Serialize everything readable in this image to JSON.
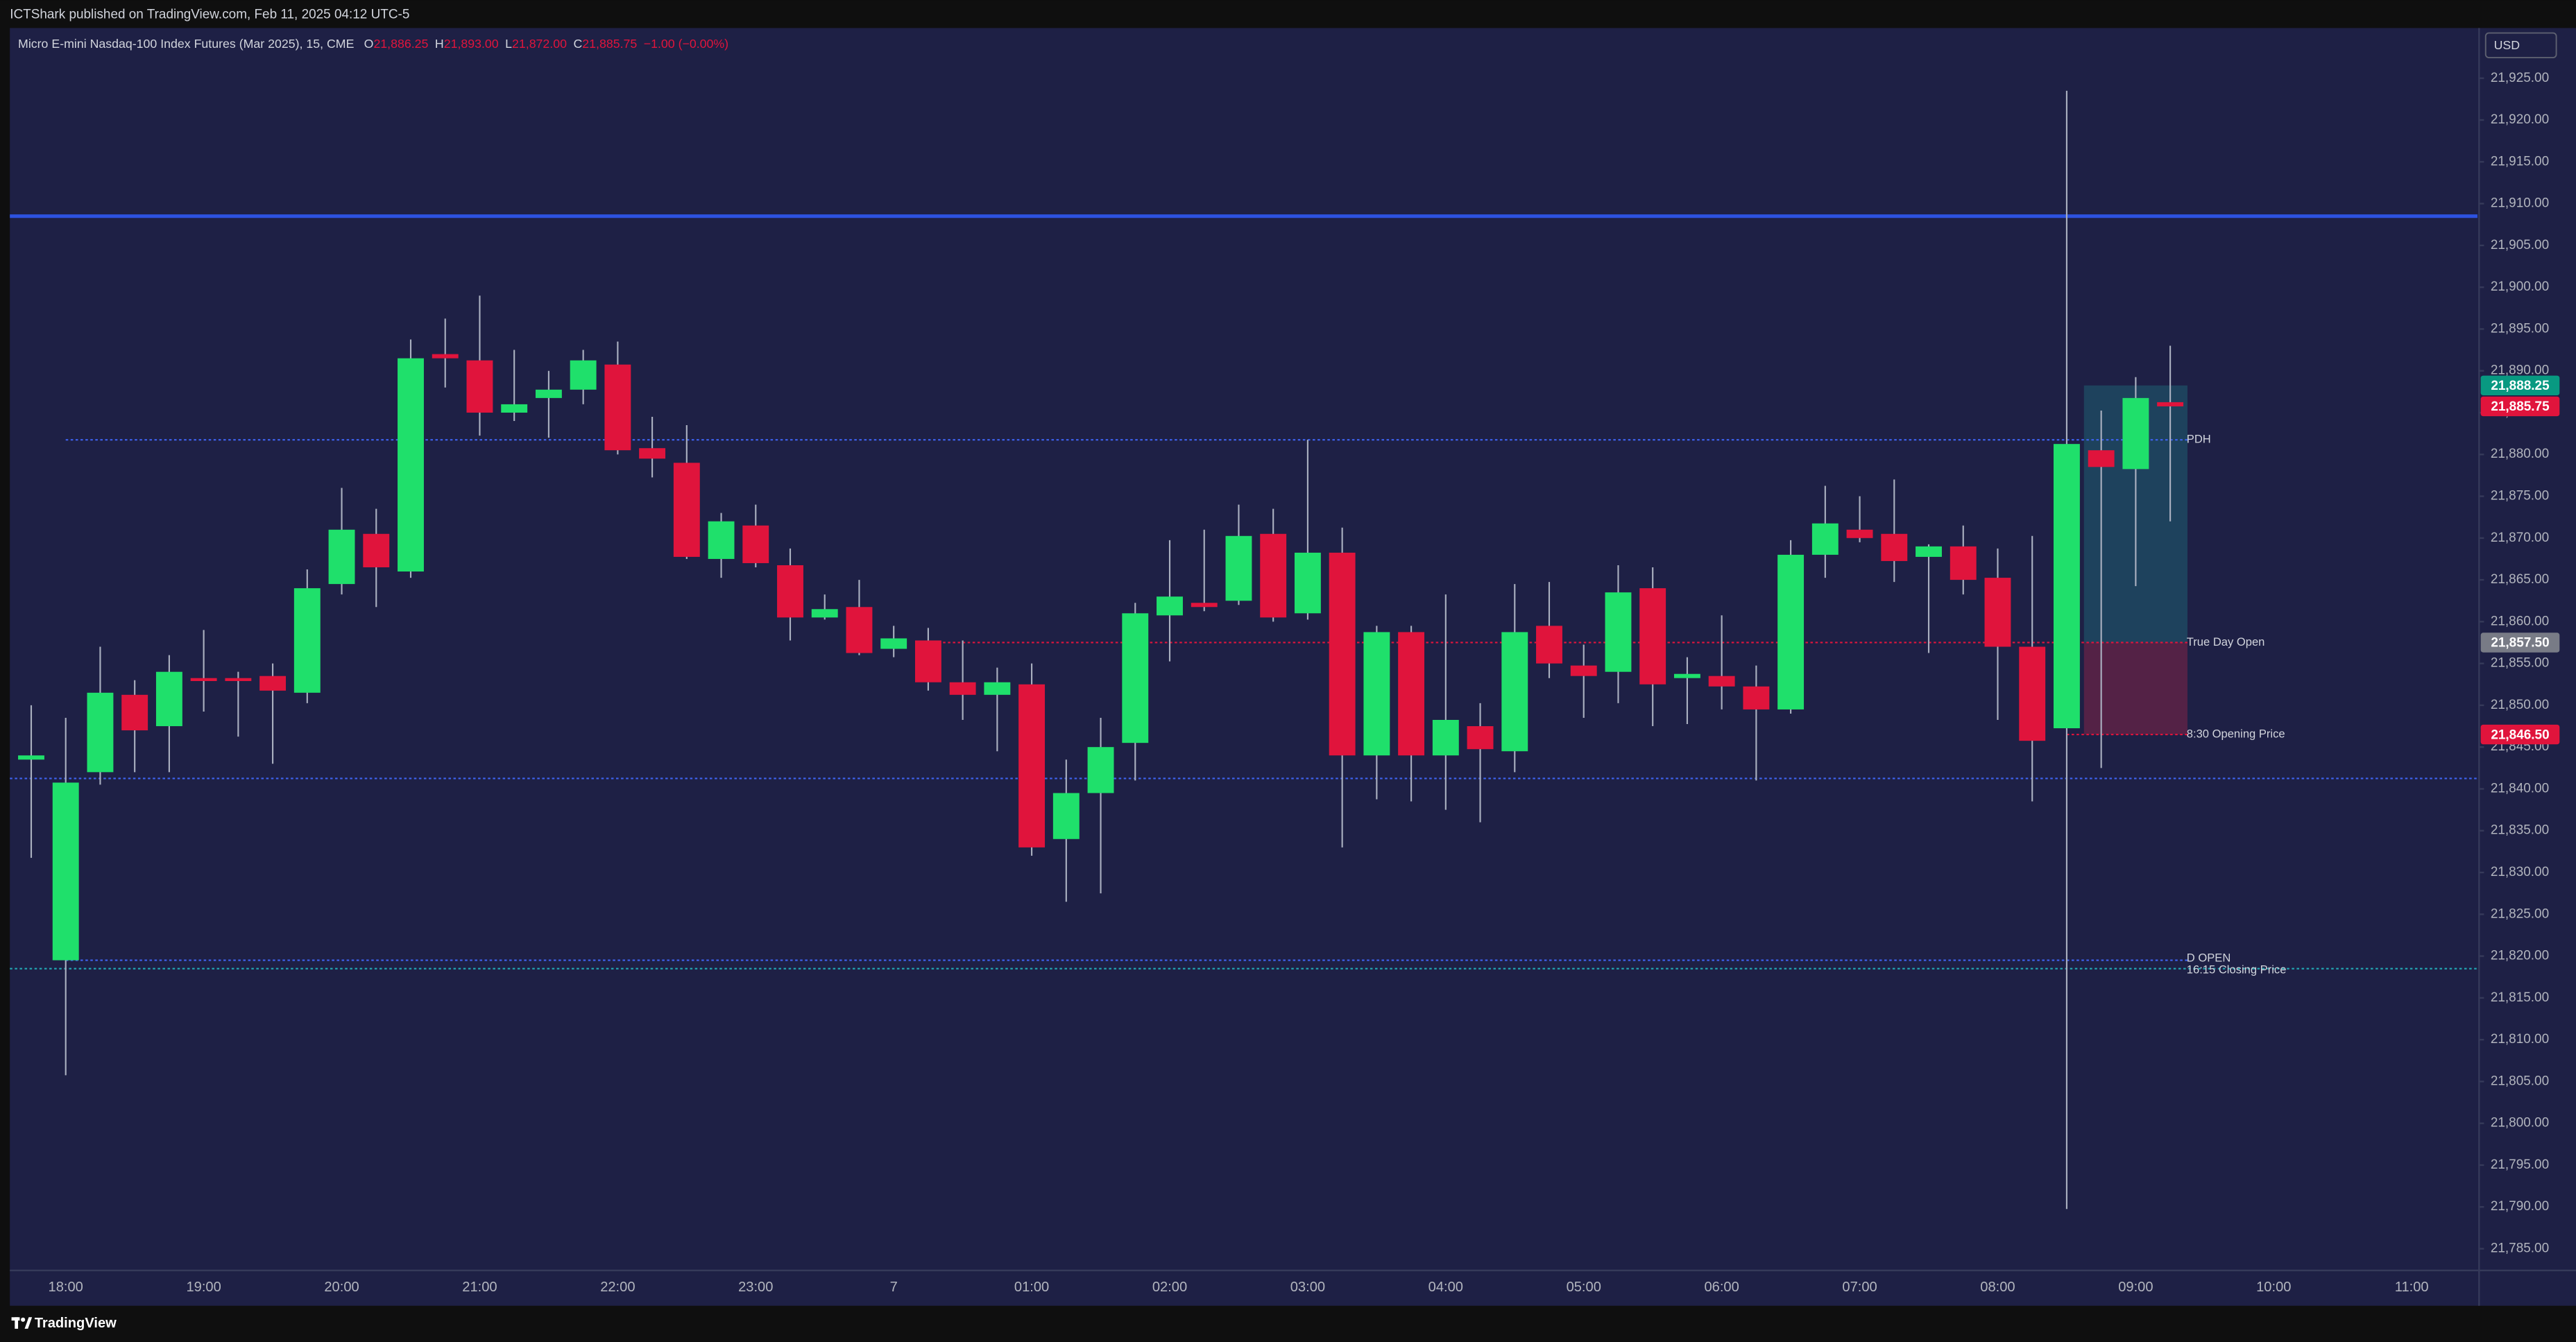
{
  "header": {
    "publisher": "ICTShark published on TradingView.com, Feb 11, 2025 04:12 UTC-5",
    "currency": "USD",
    "brand": "TradingView"
  },
  "chart_data": {
    "type": "candlestick",
    "legend": {
      "symbol": "Micro E-mini Nasdaq-100 Index Futures (Mar 2025), 15, CME",
      "items": [
        {
          "key": "O",
          "value": "21,886.25"
        },
        {
          "key": "H",
          "value": "21,893.00"
        },
        {
          "key": "L",
          "value": "21,872.00"
        },
        {
          "key": "C",
          "value": "21,885.75"
        }
      ],
      "change": "−1.00 (−0.00%)"
    },
    "categories": [
      null,
      "18:00",
      null,
      null,
      null,
      "19:00",
      null,
      null,
      null,
      "20:00",
      null,
      null,
      null,
      "21:00",
      null,
      null,
      null,
      "22:00",
      null,
      null,
      null,
      "23:00",
      null,
      null,
      null,
      "7",
      null,
      null,
      null,
      "01:00",
      null,
      null,
      null,
      "02:00",
      null,
      null,
      null,
      "03:00",
      null,
      null,
      null,
      "04:00",
      null,
      null,
      null,
      "05:00",
      null,
      null,
      null,
      "06:00",
      null,
      null,
      null,
      "07:00",
      null,
      null,
      null,
      "08:00",
      null,
      null,
      null,
      "09:00",
      null,
      null,
      null,
      "10:00",
      null,
      null,
      null,
      "11:00",
      null
    ],
    "open": [
      21843.5,
      21819.5,
      21842,
      21851.25,
      21847.5,
      21853.25,
      21853.25,
      21853.5,
      21851.5,
      21864.5,
      21870.5,
      21866,
      21892,
      21891.25,
      21885,
      21886.75,
      21887.75,
      21890.75,
      21880.75,
      21879,
      21867.5,
      21871.5,
      21866.75,
      21860.5,
      21861.75,
      21856.75,
      21857.75,
      21852.75,
      21851.25,
      21852.5,
      21834,
      21839.5,
      21845.5,
      21860.75,
      21862.25,
      21862.5,
      21870.5,
      21861,
      21868.25,
      21844,
      21858.75,
      21844,
      21847.5,
      21844.5,
      21859.5,
      21854.75,
      21854,
      21864,
      21853.25,
      21853.5,
      21852.25,
      21849.5,
      21868,
      21871,
      21870.5,
      21867.75,
      21869,
      21865.25,
      21857,
      21847.25,
      21880.5,
      21878.25,
      21886.25,
      null,
      null,
      null,
      null,
      null,
      null,
      null,
      null
    ],
    "high": [
      21850,
      21848.5,
      21857,
      21853,
      21856,
      21859,
      21854,
      21855,
      21866.25,
      21876,
      21873.5,
      21893.75,
      21896.25,
      21899,
      21892.5,
      21890,
      21892.5,
      21893.5,
      21884.5,
      21883.5,
      21873,
      21874,
      21868.75,
      21863.25,
      21865,
      21859.5,
      21859.25,
      21857.75,
      21854.5,
      21855,
      21843.5,
      21848.5,
      21862.25,
      21869.75,
      21871,
      21874,
      21873.5,
      21881.75,
      21871.25,
      21859.5,
      21859.5,
      21863.25,
      21850.25,
      21864.5,
      21864.75,
      21857.25,
      21866.75,
      21866.5,
      21855.75,
      21860.75,
      21854.75,
      21869.75,
      21876.25,
      21875,
      21877,
      21869.25,
      21871.5,
      21868.75,
      21870.25,
      21923.5,
      21885.25,
      21889.25,
      21893,
      null,
      null,
      null,
      null,
      null,
      null,
      null,
      null
    ],
    "low": [
      21831.75,
      21805.75,
      21840.5,
      21842,
      21842,
      21849.25,
      21846.25,
      21843,
      21850.25,
      21863.25,
      21861.75,
      21865.25,
      21888,
      21882.25,
      21884,
      21882,
      21886,
      21880,
      21877.25,
      21867.5,
      21865.25,
      21866.5,
      21857.75,
      21860.25,
      21856,
      21855.75,
      21851.75,
      21848.25,
      21844.5,
      21832,
      21826.5,
      21827.5,
      21841,
      21855.25,
      21861.25,
      21862,
      21860,
      21860.25,
      21833,
      21838.75,
      21838.5,
      21837.5,
      21836,
      21842,
      21853.25,
      21848.5,
      21850.25,
      21847.5,
      21847.75,
      21849.5,
      21841,
      21849,
      21865.25,
      21869.5,
      21864.75,
      21856.25,
      21863.25,
      21848.25,
      21838.5,
      21789.75,
      21842.5,
      21864.25,
      21872,
      null,
      null,
      null,
      null,
      null,
      null,
      null,
      null
    ],
    "close": [
      21844,
      21840.75,
      21851.5,
      21847,
      21854,
      21853,
      21853,
      21851.75,
      21864,
      21871,
      21866.5,
      21891.5,
      21891.5,
      21885,
      21886,
      21887.75,
      21891.25,
      21880.5,
      21879.5,
      21867.75,
      21872,
      21867,
      21860.5,
      21861.5,
      21856.25,
      21858,
      21852.75,
      21851.25,
      21852.75,
      21833,
      21839.5,
      21845,
      21861,
      21863,
      21861.75,
      21870.25,
      21860.5,
      21868.25,
      21844,
      21858.75,
      21844,
      21848.25,
      21844.75,
      21858.75,
      21855,
      21853.5,
      21863.5,
      21852.5,
      21853.75,
      21852.25,
      21849.5,
      21868,
      21871.75,
      21870,
      21867.25,
      21869,
      21865,
      21857,
      21845.75,
      21881.25,
      21878.5,
      21886.75,
      21885.75,
      null,
      null,
      null,
      null,
      null,
      null,
      null,
      null
    ],
    "up_color": "#1fe06b",
    "down_color": "#e0143c",
    "ylim": [
      21782.5,
      21931
    ],
    "yticks": [
      {
        "value": 21785,
        "label": "21,785.00"
      },
      {
        "value": 21790,
        "label": "21,790.00"
      },
      {
        "value": 21795,
        "label": "21,795.00"
      },
      {
        "value": 21800,
        "label": "21,800.00"
      },
      {
        "value": 21805,
        "label": "21,805.00"
      },
      {
        "value": 21810,
        "label": "21,810.00"
      },
      {
        "value": 21815,
        "label": "21,815.00"
      },
      {
        "value": 21820,
        "label": "21,820.00"
      },
      {
        "value": 21825,
        "label": "21,825.00"
      },
      {
        "value": 21830,
        "label": "21,830.00"
      },
      {
        "value": 21835,
        "label": "21,835.00"
      },
      {
        "value": 21840,
        "label": "21,840.00"
      },
      {
        "value": 21845,
        "label": "21,845.00"
      },
      {
        "value": 21850,
        "label": "21,850.00"
      },
      {
        "value": 21855,
        "label": "21,855.00"
      },
      {
        "value": 21860,
        "label": "21,860.00"
      },
      {
        "value": 21865,
        "label": "21,865.00"
      },
      {
        "value": 21870,
        "label": "21,870.00"
      },
      {
        "value": 21875,
        "label": "21,875.00"
      },
      {
        "value": 21880,
        "label": "21,880.00"
      },
      {
        "value": 21885,
        "label": "21,885.00"
      },
      {
        "value": 21890,
        "label": "21,890.00"
      },
      {
        "value": 21895,
        "label": "21,895.00"
      },
      {
        "value": 21900,
        "label": "21,900.00"
      },
      {
        "value": 21905,
        "label": "21,905.00"
      },
      {
        "value": 21910,
        "label": "21,910.00"
      },
      {
        "value": 21915,
        "label": "21,915.00"
      },
      {
        "value": 21920,
        "label": "21,920.00"
      },
      {
        "value": 21925,
        "label": "21,925.00"
      }
    ],
    "grid": false,
    "levels": [
      {
        "value": 21908.5,
        "color": "#2d52e0",
        "style": "solid"
      },
      {
        "value": 21881.75,
        "color": "#3f63f0",
        "style": "dotted",
        "label": "PDH"
      },
      {
        "value": 21857.5,
        "color": "#e0143c",
        "style": "dotted",
        "label": "True Day Open"
      },
      {
        "value": 21846.5,
        "color": "#e0143c",
        "style": "dotted",
        "label": "8:30 Opening Price"
      },
      {
        "value": 21841.25,
        "color": "#3f63f0",
        "style": "dotted"
      },
      {
        "value": 21819.5,
        "color": "#3f63f0",
        "style": "dotted",
        "label": "D OPEN"
      },
      {
        "value": 21818.5,
        "color": "#22a9b5",
        "style": "dotted",
        "label": "16:15 Closing Price"
      }
    ],
    "position": {
      "target": 21888.25,
      "entry": 21857.5,
      "stop": 21846.5
    },
    "price_tags": [
      {
        "value": 21888.25,
        "label": "21,888.25",
        "color": "#089981"
      },
      {
        "value": 21885.75,
        "label": "21,885.75",
        "color": "#e0143c"
      },
      {
        "value": 21857.5,
        "label": "21,857.50",
        "color": "#787b86"
      },
      {
        "value": 21846.5,
        "label": "21,846.50",
        "color": "#e0143c"
      }
    ]
  }
}
